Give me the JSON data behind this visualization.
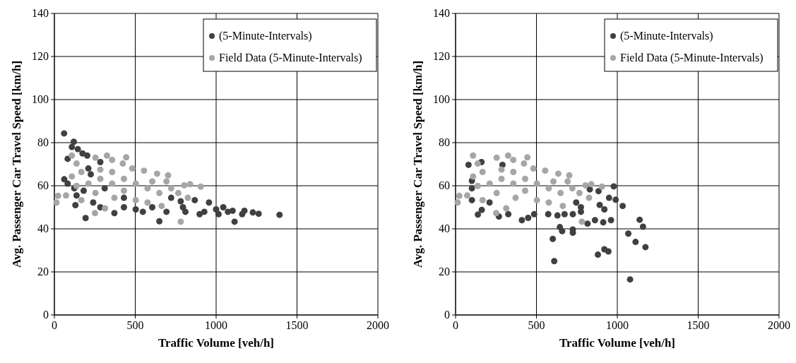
{
  "chart_data": [
    {
      "type": "scatter",
      "xlabel": "Traffic Volume [veh/h]",
      "ylabel": "Avg. Passenger Car Travel Speed [km/h]",
      "xlim": [
        0,
        2000
      ],
      "xticks": [
        0,
        500,
        1000,
        1500,
        2000
      ],
      "ylim": [
        0,
        140
      ],
      "yticks": [
        0,
        20,
        40,
        60,
        80,
        100,
        120,
        140
      ],
      "grid": true,
      "legend": "top right",
      "marker": "circle",
      "series": [
        {
          "name": "(5-Minute-Intervals)",
          "color": "#404040",
          "x": [
            60,
            120,
            108,
            145,
            174,
            203,
            82,
            284,
            210,
            61,
            82,
            137,
            130,
            193,
            371,
            649,
            430,
            503,
            605,
            722,
            781,
            868,
            956,
            1000,
            1044,
            1102,
            1175,
            1227,
            1263,
            1392,
            1114,
            1161,
            810,
            898,
            693,
            547,
            284,
            240,
            181,
            311,
            430,
            576,
            649,
            795,
            927,
            1015,
            1073,
            225,
            123
          ],
          "values": [
            84.3,
            80.4,
            78,
            77,
            75,
            74,
            72.5,
            71,
            68,
            63,
            61,
            55.5,
            51,
            45,
            47.3,
            43.5,
            50,
            49,
            50,
            54.4,
            52.8,
            53.3,
            52.2,
            49,
            50,
            48.4,
            48.4,
            47.6,
            47,
            46.5,
            43.3,
            46.8,
            47.9,
            46.8,
            47.9,
            47.9,
            50,
            52.2,
            57.7,
            58.8,
            54.4,
            null,
            null,
            50,
            47.9,
            46.8,
            47.9,
            65.3,
            58.8
          ]
        },
        {
          "name": "Field Data (5-Minute-Intervals)",
          "color": "#a6a6a6",
          "x": [
            13,
            23,
            72,
            108,
            325,
            444,
            254,
            423,
            137,
            481,
            554,
            635,
            703,
            693,
            803,
            839,
            905,
            766,
            825,
            781,
            251,
            313,
            167,
            211,
            284,
            357,
            430,
            503,
            576,
            649,
            722,
            284,
            357,
            167,
            108,
            137,
            503,
            576,
            663,
            430,
            371,
            254,
            605,
            357
          ],
          "values": [
            52.2,
            55.3,
            55.5,
            74,
            74,
            73.2,
            73,
            70.3,
            70.3,
            68,
            67,
            65.6,
            64.8,
            62,
            60.2,
            60.7,
            59.6,
            56.6,
            54.4,
            43.3,
            47.3,
            49.5,
            53.3,
            61,
            63.2,
            61,
            63.2,
            61,
            58.8,
            56.6,
            58.8,
            67.5,
            66.4,
            66.4,
            64.3,
            59.9,
            53.3,
            52.2,
            50.6,
            57.7,
            54.4,
            56.6,
            62,
            72
          ]
        }
      ]
    },
    {
      "type": "scatter",
      "xlabel": "Traffic Volume [veh/h]",
      "ylabel": "Avg. Passenger Car Travel Speed [km/h]",
      "xlim": [
        0,
        2000
      ],
      "xticks": [
        0,
        500,
        1000,
        1500,
        2000
      ],
      "ylim": [
        0,
        140
      ],
      "yticks": [
        0,
        20,
        40,
        60,
        80,
        100,
        120,
        140
      ],
      "grid": true,
      "legend": "top right",
      "marker": "circle",
      "series": [
        {
          "name": "(5-Minute-Intervals)",
          "color": "#404040",
          "x": [
            80,
            160,
            290,
            101,
            101,
            101,
            138,
            162,
            210,
            268,
            326,
            410,
            449,
            486,
            573,
            630,
            674,
            725,
            775,
            816,
            862,
            913,
            961,
            978,
            884,
            830,
            949,
            990,
            1033,
            891,
            746,
            775,
            920,
            645,
            659,
            725,
            725,
            601,
            1068,
            1113,
            1138,
            1159,
            1174,
            1079,
            610,
            880,
            920,
            945
          ],
          "values": [
            69.7,
            71,
            69.7,
            62.3,
            58.8,
            53.3,
            46.6,
            48.8,
            52.2,
            45.7,
            46.8,
            44,
            45.1,
            46.8,
            46.8,
            46.2,
            46.8,
            46.8,
            47.9,
            42.4,
            44,
            43,
            44,
            59.7,
            57.5,
            58.3,
            54.4,
            53.5,
            50.6,
            51.1,
            52.2,
            50,
            49,
            40.8,
            38.9,
            39.7,
            38.2,
            35.3,
            37.8,
            33.9,
            44.2,
            41,
            31.5,
            16.5,
            25,
            28,
            30.5,
            29.5
          ]
        },
        {
          "name": "Field Data (5-Minute-Intervals)",
          "color": "#a6a6a6",
          "x": [
            13,
            23,
            72,
            108,
            325,
            444,
            254,
            423,
            137,
            481,
            554,
            635,
            703,
            693,
            803,
            839,
            905,
            766,
            825,
            781,
            251,
            313,
            167,
            211,
            284,
            357,
            430,
            503,
            576,
            649,
            722,
            284,
            357,
            167,
            108,
            137,
            503,
            576,
            663,
            430,
            371,
            254,
            605,
            357
          ],
          "values": [
            52.2,
            55.3,
            55.5,
            74,
            74,
            73.2,
            73,
            70.3,
            70.3,
            68,
            67,
            65.6,
            64.8,
            62,
            60.2,
            60.7,
            59.6,
            56.6,
            54.4,
            43.3,
            47.3,
            49.5,
            53.3,
            61,
            63.2,
            61,
            63.2,
            61,
            58.8,
            56.6,
            58.8,
            67.5,
            66.4,
            66.4,
            64.3,
            59.9,
            53.3,
            52.2,
            50.6,
            57.7,
            54.4,
            56.6,
            62,
            72
          ]
        }
      ]
    }
  ]
}
